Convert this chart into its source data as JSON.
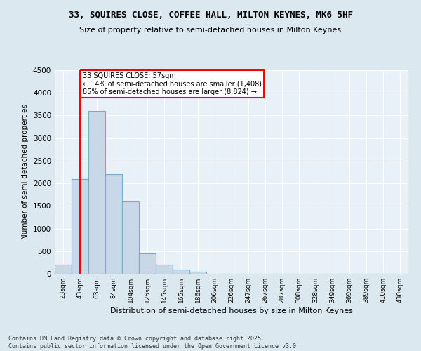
{
  "title1": "33, SQUIRES CLOSE, COFFEE HALL, MILTON KEYNES, MK6 5HF",
  "title2": "Size of property relative to semi-detached houses in Milton Keynes",
  "xlabel": "Distribution of semi-detached houses by size in Milton Keynes",
  "ylabel": "Number of semi-detached properties",
  "categories": [
    "23sqm",
    "43sqm",
    "63sqm",
    "84sqm",
    "104sqm",
    "125sqm",
    "145sqm",
    "165sqm",
    "186sqm",
    "206sqm",
    "226sqm",
    "247sqm",
    "267sqm",
    "287sqm",
    "308sqm",
    "328sqm",
    "349sqm",
    "369sqm",
    "389sqm",
    "410sqm",
    "430sqm"
  ],
  "values": [
    200,
    2100,
    3600,
    2200,
    1600,
    450,
    200,
    100,
    50,
    0,
    0,
    0,
    0,
    0,
    0,
    0,
    0,
    0,
    0,
    0,
    0
  ],
  "bar_color": "#c8d8e8",
  "bar_edge_color": "#7aaac8",
  "red_line_label1": "33 SQUIRES CLOSE: 57sqm",
  "red_line_label2": "← 14% of semi-detached houses are smaller (1,408)",
  "red_line_label3": "85% of semi-detached houses are larger (8,824) →",
  "ylim": [
    0,
    4500
  ],
  "yticks": [
    0,
    500,
    1000,
    1500,
    2000,
    2500,
    3000,
    3500,
    4000,
    4500
  ],
  "bg_color": "#dce8f0",
  "plot_bg_color": "#e8f0f8",
  "grid_color": "#ffffff",
  "footer1": "Contains HM Land Registry data © Crown copyright and database right 2025.",
  "footer2": "Contains public sector information licensed under the Open Government Licence v3.0."
}
